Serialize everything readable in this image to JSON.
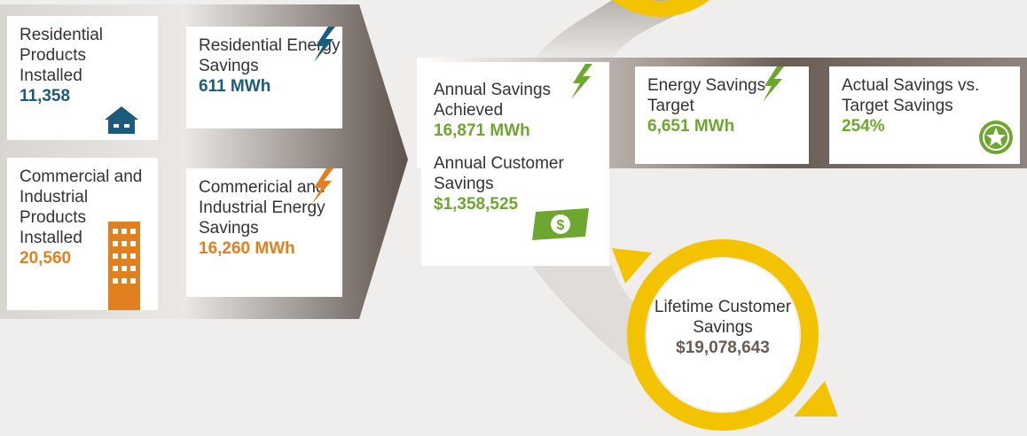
{
  "residential_products": {
    "label": "Residential Products Installed",
    "value": "11,358"
  },
  "residential_savings": {
    "label": "Residential Energy Savings",
    "value": "611 MWh"
  },
  "commercial_products": {
    "label": "Commercial and Industrial Products Installed",
    "value": "20,560"
  },
  "commercial_savings": {
    "label": "Commericial and Industrial Energy Savings",
    "value": "16,260 MWh"
  },
  "annual_savings": {
    "label": "Annual Savings Achieved",
    "value": "16,871 MWh"
  },
  "savings_target": {
    "label": "Energy Savings Target",
    "value": "6,651 MWh"
  },
  "actual_vs_target": {
    "label": "Actual Savings vs. Target Savings",
    "value": "254%"
  },
  "customer_savings": {
    "label": "Annual Customer Savings",
    "value": "$1,358,525"
  },
  "lifetime_savings": {
    "label": "Lifetime Customer Savings",
    "value": "$19,078,643"
  }
}
